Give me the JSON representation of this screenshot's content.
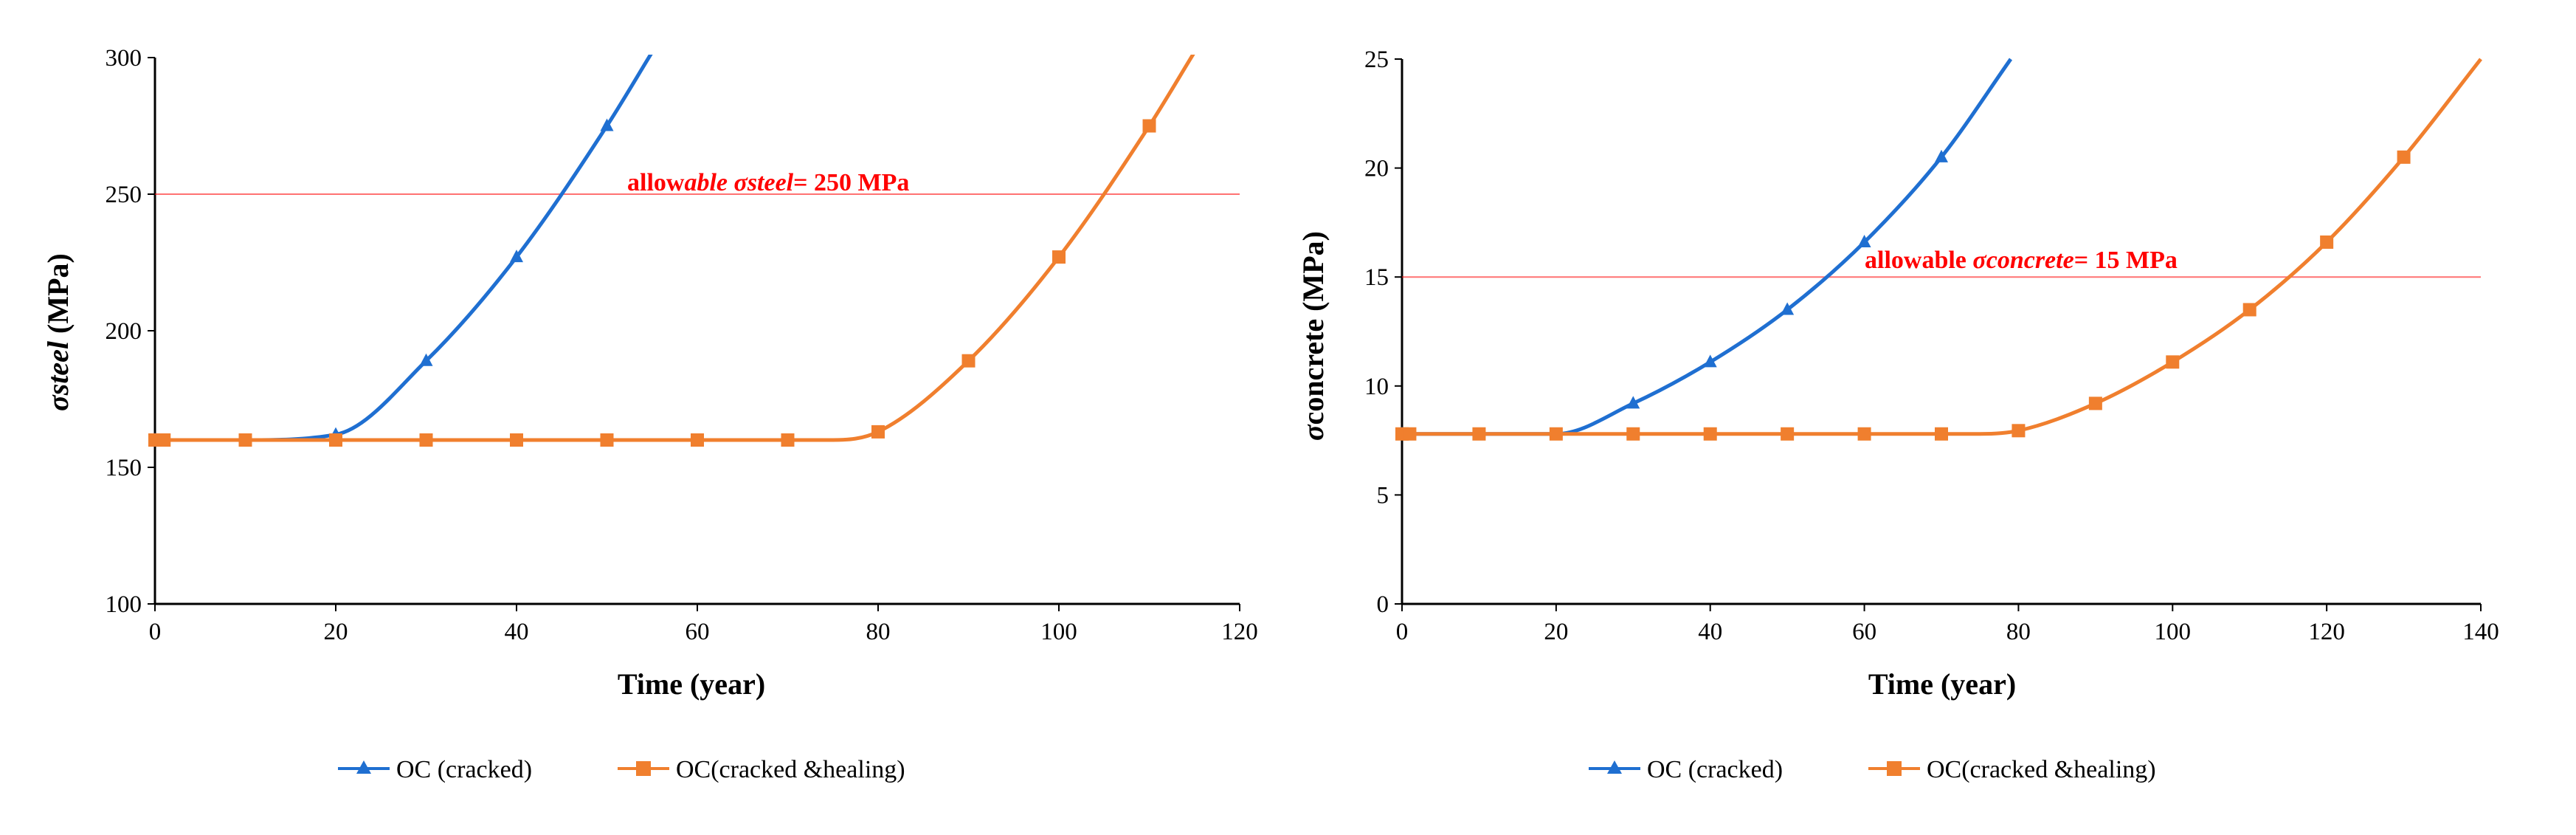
{
  "chart_data": [
    {
      "type": "line",
      "xlabel": "Time (year)",
      "ylabel_symbol": "σ",
      "ylabel_sub": "steel",
      "ylabel_unit": " (MPa)",
      "xlim": [
        0,
        120
      ],
      "xticks": [
        0,
        20,
        40,
        60,
        80,
        100,
        120
      ],
      "ylim": [
        100,
        300
      ],
      "yticks": [
        100,
        150,
        200,
        250,
        300
      ],
      "reference_line": {
        "value": 250,
        "label_prefix": "allow",
        "label_italic": "able σsteel",
        "label_suffix": "= 250 MPa",
        "color": "#ff0000"
      },
      "series": [
        {
          "name": "OC (cracked)",
          "color": "#1f6fd1",
          "marker": "triangle",
          "x": [
            0,
            1,
            10,
            20,
            30,
            40,
            50,
            55
          ],
          "y": [
            160,
            160,
            160,
            162,
            189,
            227,
            275,
            302
          ],
          "markers_x": [
            0,
            20,
            30,
            40,
            50
          ],
          "markers_y": [
            160,
            162,
            189,
            227,
            275
          ]
        },
        {
          "name": "OC(cracked &healing)",
          "color": "#f07f2e",
          "marker": "square",
          "x": [
            0,
            1,
            10,
            20,
            30,
            40,
            50,
            60,
            70,
            75,
            80,
            90,
            100,
            110,
            115
          ],
          "y": [
            160,
            160,
            160,
            160,
            160,
            160,
            160,
            160,
            160,
            160,
            163,
            189,
            227,
            275,
            302
          ],
          "markers_x": [
            0,
            1,
            10,
            20,
            30,
            40,
            50,
            60,
            70,
            80,
            90,
            100,
            110
          ],
          "markers_y": [
            160,
            160,
            160,
            160,
            160,
            160,
            160,
            160,
            160,
            163,
            189,
            227,
            275
          ]
        }
      ]
    },
    {
      "type": "line",
      "xlabel": "Time (year)",
      "ylabel_symbol": "σ",
      "ylabel_sub": "concrete",
      "ylabel_unit": " (MPa)",
      "xlim": [
        0,
        140
      ],
      "xticks": [
        0,
        20,
        40,
        60,
        80,
        100,
        120,
        140
      ],
      "ylim": [
        0,
        25
      ],
      "yticks": [
        0,
        5,
        10,
        15,
        20,
        25
      ],
      "reference_line": {
        "value": 15,
        "label_prefix": "allowable ",
        "label_italic": "σconcrete",
        "label_suffix": "= 15 MPa",
        "color": "#ff0000"
      },
      "series": [
        {
          "name": "OC (cracked)",
          "color": "#1f6fd1",
          "marker": "triangle",
          "x": [
            0,
            10,
            20,
            30,
            40,
            50,
            60,
            70,
            79
          ],
          "y": [
            7.8,
            7.8,
            7.8,
            9.2,
            11.1,
            13.5,
            16.6,
            20.5,
            25
          ],
          "markers_x": [
            0,
            30,
            40,
            50,
            60,
            70
          ],
          "markers_y": [
            7.8,
            9.2,
            11.1,
            13.5,
            16.6,
            20.5
          ]
        },
        {
          "name": "OC(cracked &healing)",
          "color": "#f07f2e",
          "marker": "square",
          "x": [
            0,
            1,
            10,
            20,
            30,
            40,
            50,
            60,
            70,
            75,
            80,
            90,
            100,
            110,
            120,
            130,
            140
          ],
          "y": [
            7.8,
            7.8,
            7.8,
            7.8,
            7.8,
            7.8,
            7.8,
            7.8,
            7.8,
            7.8,
            7.95,
            9.2,
            11.1,
            13.5,
            16.6,
            20.5,
            25
          ],
          "markers_x": [
            0,
            1,
            10,
            20,
            30,
            40,
            50,
            60,
            70,
            80,
            90,
            100,
            110,
            120,
            130
          ],
          "markers_y": [
            7.8,
            7.8,
            7.8,
            7.8,
            7.8,
            7.8,
            7.8,
            7.8,
            7.8,
            7.95,
            9.2,
            11.1,
            13.5,
            16.6,
            20.5
          ]
        }
      ]
    }
  ]
}
